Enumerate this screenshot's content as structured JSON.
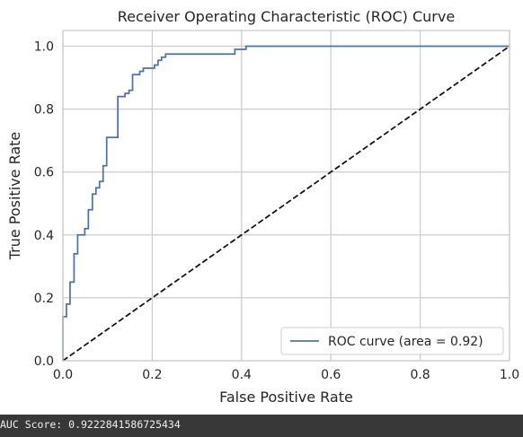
{
  "chart_data": {
    "type": "line",
    "title": "Receiver Operating Characteristic (ROC) Curve",
    "xlabel": "False Positive Rate",
    "ylabel": "True Positive Rate",
    "xlim": [
      0.0,
      1.0
    ],
    "ylim": [
      0.0,
      1.05
    ],
    "xticks": [
      "0.0",
      "0.2",
      "0.4",
      "0.6",
      "0.8",
      "1.0"
    ],
    "yticks": [
      "0.0",
      "0.2",
      "0.4",
      "0.6",
      "0.8",
      "1.0"
    ],
    "grid": true,
    "legend_position": "lower-right",
    "series": [
      {
        "name": "ROC curve (area = 0.92)",
        "color": "#4c72b0",
        "style": "step",
        "x": [
          0.0,
          0.0,
          0.008,
          0.008,
          0.016,
          0.016,
          0.025,
          0.025,
          0.033,
          0.033,
          0.049,
          0.049,
          0.057,
          0.057,
          0.066,
          0.066,
          0.074,
          0.074,
          0.082,
          0.082,
          0.09,
          0.09,
          0.098,
          0.098,
          0.123,
          0.123,
          0.139,
          0.139,
          0.148,
          0.148,
          0.156,
          0.156,
          0.172,
          0.172,
          0.18,
          0.18,
          0.205,
          0.205,
          0.213,
          0.213,
          0.221,
          0.221,
          0.23,
          0.23,
          0.385,
          0.385,
          0.41,
          0.41,
          1.0
        ],
        "y": [
          0.0,
          0.14,
          0.14,
          0.18,
          0.18,
          0.25,
          0.25,
          0.34,
          0.34,
          0.4,
          0.4,
          0.42,
          0.42,
          0.48,
          0.48,
          0.53,
          0.53,
          0.55,
          0.55,
          0.57,
          0.57,
          0.62,
          0.62,
          0.71,
          0.71,
          0.84,
          0.84,
          0.85,
          0.85,
          0.86,
          0.86,
          0.91,
          0.91,
          0.92,
          0.92,
          0.93,
          0.93,
          0.94,
          0.94,
          0.955,
          0.955,
          0.965,
          0.965,
          0.975,
          0.975,
          0.99,
          0.99,
          1.0,
          1.0
        ]
      },
      {
        "name": "",
        "color": "#111111",
        "style": "dashed",
        "x": [
          0.0,
          1.0
        ],
        "y": [
          0.0,
          1.0
        ]
      }
    ]
  },
  "console": {
    "text": "AUC Score: 0.9222841586725434"
  }
}
